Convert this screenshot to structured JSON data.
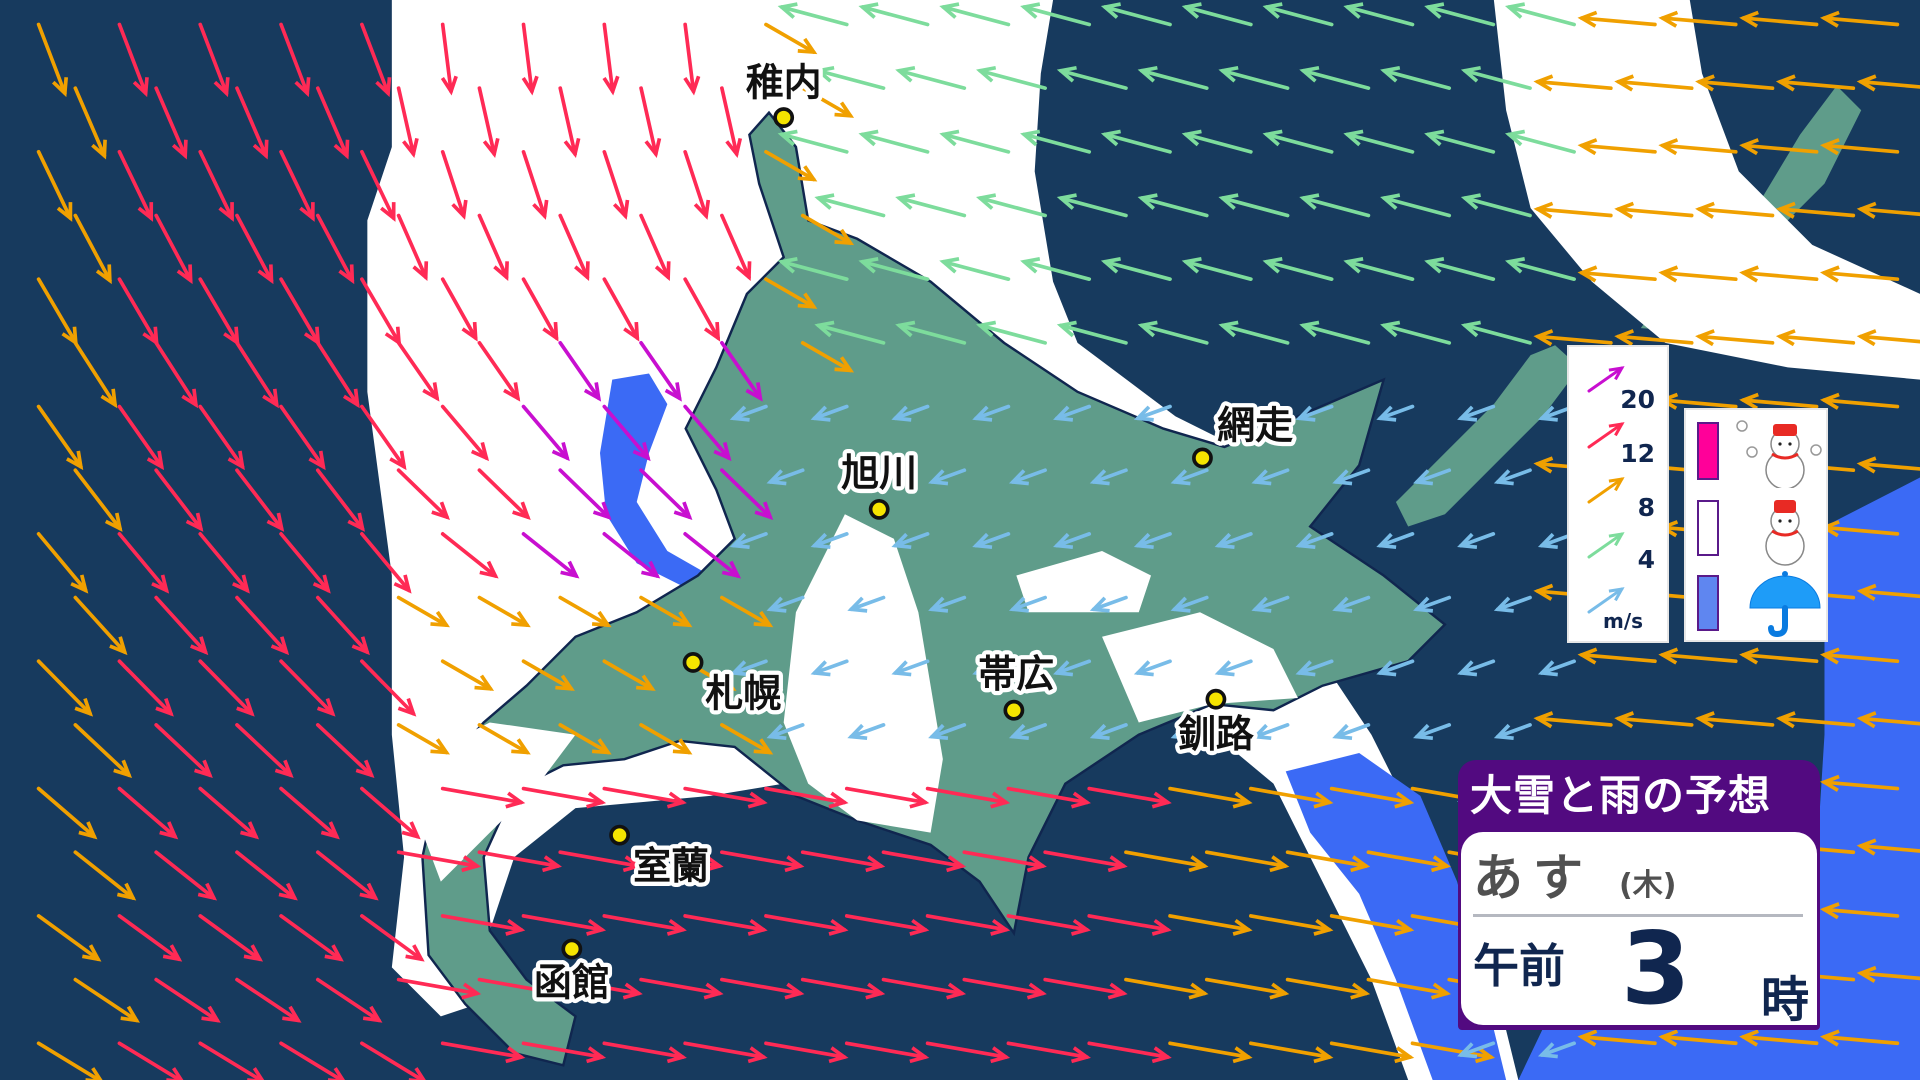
{
  "title": {
    "heading": "大雪と雨の予想",
    "day": "あす",
    "weekday": "(木)",
    "period": "午前",
    "hour": "3",
    "hour_suffix": "時"
  },
  "cities": [
    {
      "name": "稚内"
    },
    {
      "name": "旭川"
    },
    {
      "name": "網走"
    },
    {
      "name": "札幌"
    },
    {
      "name": "帯広"
    },
    {
      "name": "釧路"
    },
    {
      "name": "室蘭"
    },
    {
      "name": "函館"
    }
  ],
  "wind_legend": {
    "unit": "m/s",
    "thresholds": [
      "20",
      "12",
      "8",
      "4"
    ],
    "colors": [
      "#c80fd0",
      "#ff2a55",
      "#f0a000",
      "#7ddc9c",
      "#78bce8"
    ]
  },
  "precip_legend": {
    "items": [
      {
        "kind": "heavy-snow",
        "color": "#ff0099",
        "icon": "snowman-with-snowflakes-icon"
      },
      {
        "kind": "snow",
        "color": "#ffffff",
        "icon": "snowman-icon"
      },
      {
        "kind": "rain",
        "color": "#5f86f0",
        "icon": "umbrella-icon"
      }
    ]
  },
  "colors": {
    "sea": "#173a5e",
    "land": "#5f9c8a",
    "snow_area": "#ffffff",
    "rain_area": "#3b6af5",
    "title_band": "#520a80"
  }
}
